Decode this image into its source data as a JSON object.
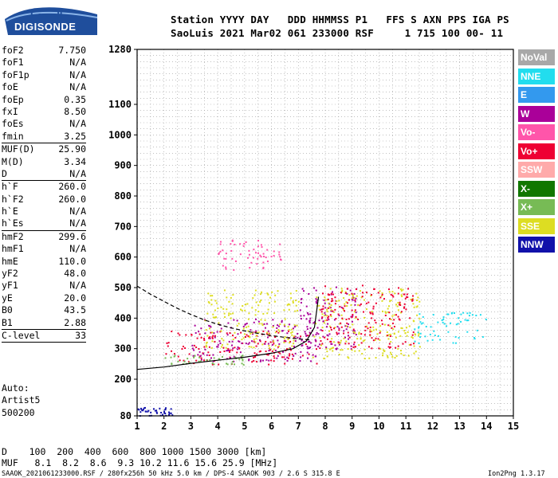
{
  "logo": {
    "line1": "Lowell",
    "line2": "DIGISONDE"
  },
  "header": {
    "labels_line": "Station YYYY DAY   DDD HHMMSS P1   FFS S AXN PPS IGA PS",
    "values_line": "SaoLuis 2021 Mar02 061 233000 RSF     1 715 100 00- 11"
  },
  "params": [
    {
      "label": "foF2",
      "value": "7.750"
    },
    {
      "label": "foF1",
      "value": "N/A"
    },
    {
      "label": "foF1p",
      "value": "N/A"
    },
    {
      "label": "foE",
      "value": "N/A"
    },
    {
      "label": "foEp",
      "value": "0.35"
    },
    {
      "label": "fxI",
      "value": "8.50"
    },
    {
      "label": "foEs",
      "value": "N/A"
    },
    {
      "label": "fmin",
      "value": "3.25"
    },
    {
      "label": "MUF(D)",
      "value": "25.90"
    },
    {
      "label": "M(D)",
      "value": "3.34"
    },
    {
      "label": "D",
      "value": "N/A"
    },
    {
      "label": "h`F",
      "value": "260.0"
    },
    {
      "label": "h`F2",
      "value": "260.0"
    },
    {
      "label": "h`E",
      "value": "N/A"
    },
    {
      "label": "h`Es",
      "value": "N/A"
    },
    {
      "label": "hmF2",
      "value": "299.6"
    },
    {
      "label": "hmF1",
      "value": "N/A"
    },
    {
      "label": "hmE",
      "value": "110.0"
    },
    {
      "label": "yF2",
      "value": "48.0"
    },
    {
      "label": "yF1",
      "value": "N/A"
    },
    {
      "label": "yE",
      "value": "20.0"
    },
    {
      "label": "B0",
      "value": "43.5"
    },
    {
      "label": "B1",
      "value": "2.88"
    },
    {
      "label": "C-level",
      "value": "33"
    }
  ],
  "auto": {
    "line1": "Auto:",
    "line2": "Artist5",
    "line3": "500200"
  },
  "legend": [
    {
      "label": "NoVal",
      "color": "#a8a8a8"
    },
    {
      "label": "NNE",
      "color": "#22ddee"
    },
    {
      "label": "E",
      "color": "#3399ee"
    },
    {
      "label": "W",
      "color": "#aa0099"
    },
    {
      "label": "Vo-",
      "color": "#ff55aa"
    },
    {
      "label": "Vo+",
      "color": "#ee0033"
    },
    {
      "label": "SSW",
      "color": "#ffaaaa"
    },
    {
      "label": "X-",
      "color": "#117700"
    },
    {
      "label": "X+",
      "color": "#77bb55"
    },
    {
      "label": "SSE",
      "color": "#dddd22"
    },
    {
      "label": "NNW",
      "color": "#1111aa"
    }
  ],
  "footer": {
    "d_line": "D    100  200  400  600  800 1000 1500 3000 [km]",
    "muf_line": "MUF   8.1  8.2  8.6  9.3 10.2 11.6 15.6 25.9 [MHz]",
    "file_info": "SAAOK_2021061233000.RSF / 280fx256h 50 kHz 5.0 km / DPS-4 SAAOK 903 / 2.6 S 315.8 E",
    "version": "Ion2Png 1.3.17"
  },
  "chart_data": {
    "type": "scatter",
    "xlabel": "",
    "ylabel": "",
    "xlim": [
      1,
      15
    ],
    "ylim": [
      80,
      1280
    ],
    "x_ticks": [
      1,
      2,
      3,
      4,
      5,
      6,
      7,
      8,
      9,
      10,
      11,
      12,
      13,
      14,
      15
    ],
    "y_ticks": [
      80,
      200,
      300,
      400,
      500,
      600,
      700,
      800,
      900,
      1000,
      1100,
      1280
    ],
    "grid": true,
    "traces": [
      {
        "name": "",
        "style": "solid",
        "color": "#000000",
        "x": [
          1.0,
          2.0,
          3.0,
          4.0,
          5.0,
          6.0,
          6.8,
          7.3,
          7.6,
          7.75
        ],
        "y": [
          232,
          240,
          252,
          262,
          272,
          285,
          300,
          325,
          370,
          470
        ]
      },
      {
        "name": "",
        "style": "dashed",
        "color": "#000000",
        "x": [
          1.0,
          1.5,
          2.0,
          2.5,
          3.0,
          3.5,
          4.0,
          4.5,
          5.0,
          5.5,
          6.0,
          6.5,
          7.0,
          7.5
        ],
        "y": [
          505,
          478,
          455,
          432,
          412,
          394,
          380,
          368,
          358,
          350,
          343,
          337,
          332,
          328
        ]
      }
    ],
    "echo_regions": [
      {
        "mode": "Vo+",
        "x": [
          2.0,
          7.8
        ],
        "y": [
          250,
          360
        ]
      },
      {
        "mode": "W",
        "x": [
          3.0,
          7.8
        ],
        "y": [
          260,
          400
        ]
      },
      {
        "mode": "SSE",
        "x": [
          3.5,
          7.0
        ],
        "y": [
          300,
          500
        ]
      },
      {
        "mode": "Vo-",
        "x": [
          4.0,
          6.5
        ],
        "y": [
          560,
          660
        ]
      },
      {
        "mode": "W",
        "x": [
          7.0,
          9.2
        ],
        "y": [
          300,
          510
        ]
      },
      {
        "mode": "SSE",
        "x": [
          7.5,
          11.5
        ],
        "y": [
          270,
          500
        ]
      },
      {
        "mode": "Vo+",
        "x": [
          7.8,
          11.3
        ],
        "y": [
          300,
          510
        ]
      },
      {
        "mode": "NNE",
        "x": [
          11.3,
          14.0
        ],
        "y": [
          320,
          420
        ]
      },
      {
        "mode": "NNW",
        "x": [
          1.0,
          2.3
        ],
        "y": [
          82,
          110
        ]
      },
      {
        "mode": "X+",
        "x": [
          2.0,
          5.0
        ],
        "y": [
          250,
          280
        ]
      }
    ]
  }
}
